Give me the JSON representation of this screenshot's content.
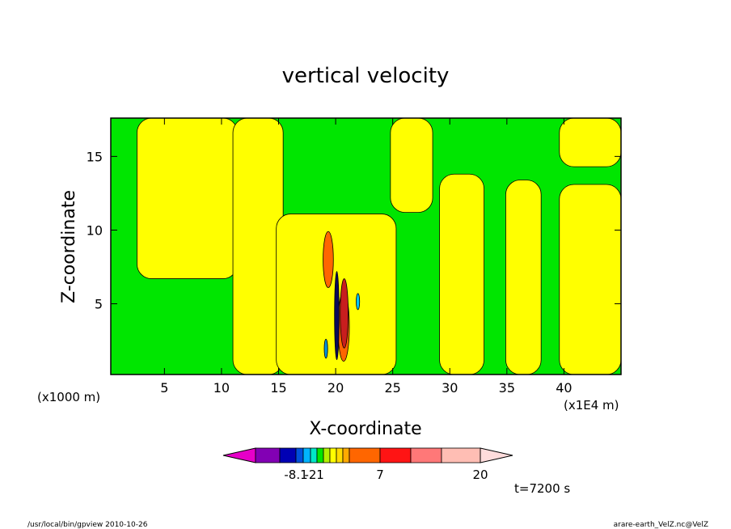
{
  "chart_data": {
    "type": "heatmap",
    "title": "vertical velocity",
    "xlabel": "X-coordinate",
    "ylabel": "Z-coordinate",
    "x_unit_note_left": "(x1000 m)",
    "x_unit_note_right": "(x1E4 m)",
    "xlim": [
      0.3,
      45
    ],
    "ylim": [
      0.2,
      17.6
    ],
    "x_ticks": [
      5,
      10,
      15,
      20,
      25,
      30,
      35,
      40
    ],
    "x_tick_labels": [
      "5",
      "10",
      "15",
      "20",
      "25",
      "30",
      "35",
      "40"
    ],
    "y_ticks": [
      5,
      10,
      15
    ],
    "y_tick_labels": [
      "5",
      "10",
      "15"
    ],
    "fill_regions": [
      {
        "level": "yellow",
        "x_from": 2.6,
        "x_to": 11.4,
        "z_from": 6.7,
        "z_to": 17.6
      },
      {
        "level": "yellow",
        "x_from": 11.0,
        "x_to": 15.4,
        "z_from": 0.2,
        "z_to": 17.6
      },
      {
        "level": "yellow",
        "x_from": 14.8,
        "x_to": 25.3,
        "z_from": 0.2,
        "z_to": 11.1
      },
      {
        "level": "yellow",
        "x_from": 29.1,
        "x_to": 33.0,
        "z_from": 0.2,
        "z_to": 13.8
      },
      {
        "level": "yellow",
        "x_from": 34.9,
        "x_to": 38.0,
        "z_from": 0.2,
        "z_to": 13.4
      },
      {
        "level": "yellow",
        "x_from": 39.6,
        "x_to": 45.0,
        "z_from": 0.2,
        "z_to": 13.1
      },
      {
        "level": "yellow",
        "x_from": 39.6,
        "x_to": 45.0,
        "z_from": 14.3,
        "z_to": 17.6
      },
      {
        "level": "yellow",
        "x_from": 24.8,
        "x_to": 28.5,
        "z_from": 11.2,
        "z_to": 17.6
      }
    ],
    "extreme_regions": [
      {
        "color": "#ff6600",
        "x_from": 18.9,
        "x_to": 19.8,
        "z_from": 6.1,
        "z_to": 9.9
      },
      {
        "color": "#ff6600",
        "x_from": 20.2,
        "x_to": 21.2,
        "z_from": 1.1,
        "z_to": 5.8
      },
      {
        "color": "#c81e1e",
        "x_from": 20.4,
        "x_to": 21.1,
        "z_from": 2.0,
        "z_to": 6.7
      },
      {
        "color": "#0a0a5a",
        "x_from": 19.9,
        "x_to": 20.3,
        "z_from": 1.2,
        "z_to": 7.2
      },
      {
        "color": "#0096dc",
        "x_from": 19.0,
        "x_to": 19.3,
        "z_from": 1.3,
        "z_to": 2.6
      },
      {
        "color": "#00c8ff",
        "x_from": 21.8,
        "x_to": 22.1,
        "z_from": 4.6,
        "z_to": 5.7
      }
    ],
    "colors": {
      "background_level": "#00e600",
      "yellow_level": "#ffff00",
      "contour_line": "#000000"
    },
    "colorbar": {
      "colors": [
        "#e600c8",
        "#8200b4",
        "#0000b4",
        "#0050dc",
        "#00b4ff",
        "#00e6c8",
        "#00e600",
        "#b4f000",
        "#ffff00",
        "#ffdc00",
        "#ffaa00",
        "#ff6600",
        "#ff1414",
        "#ff7878",
        "#ffbeb4",
        "#ffdcdc"
      ],
      "tick_labels": [
        "-8.1",
        "-2",
        "1",
        "7",
        "20"
      ]
    },
    "time_label": "t=7200 s",
    "footer_left": "/usr/local/bin/gpview   2010-10-26",
    "footer_right": "arare-earth_VelZ.nc@VelZ"
  }
}
